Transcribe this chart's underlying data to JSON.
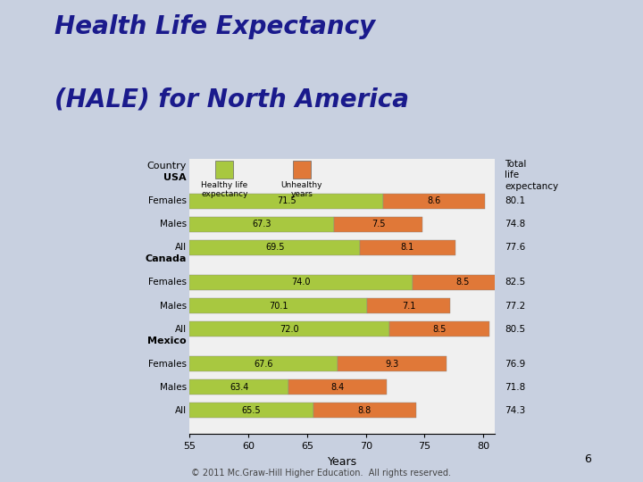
{
  "title_line1": "Health Life Expectancy",
  "title_line2": "(HALE) for North America",
  "title_color": "#1a1a8c",
  "bg_color": "#c8d0e0",
  "chart_bg": "#f0f0f0",
  "healthy_color": "#a8c840",
  "unhealthy_color": "#e07838",
  "rows": [
    {
      "label": "Females",
      "group": "USA",
      "healthy": 71.5,
      "unhealthy": 8.6,
      "total": "80.1"
    },
    {
      "label": "Males",
      "group": "USA",
      "healthy": 67.3,
      "unhealthy": 7.5,
      "total": "74.8"
    },
    {
      "label": "All",
      "group": "USA",
      "healthy": 69.5,
      "unhealthy": 8.1,
      "total": "77.6"
    },
    {
      "label": "Females",
      "group": "Canada",
      "healthy": 74.0,
      "unhealthy": 8.5,
      "total": "82.5"
    },
    {
      "label": "Males",
      "group": "Canada",
      "healthy": 70.1,
      "unhealthy": 7.1,
      "total": "77.2"
    },
    {
      "label": "All",
      "group": "Canada",
      "healthy": 72.0,
      "unhealthy": 8.5,
      "total": "80.5"
    },
    {
      "label": "Females",
      "group": "Mexico",
      "healthy": 67.6,
      "unhealthy": 9.3,
      "total": "76.9"
    },
    {
      "label": "Males",
      "group": "Mexico",
      "healthy": 63.4,
      "unhealthy": 8.4,
      "total": "71.8"
    },
    {
      "label": "All",
      "group": "Mexico",
      "healthy": 65.5,
      "unhealthy": 8.8,
      "total": "74.3"
    }
  ],
  "xmin": 55,
  "xmax": 81,
  "xlabel": "Years",
  "legend_label1": "Healthy life\nexpectancy",
  "legend_label2": "Unhealthy\nyears",
  "footer_num": "6",
  "footer_text": "© 2011 Mc.Graw-Hill Higher Education.  All rights reserved."
}
